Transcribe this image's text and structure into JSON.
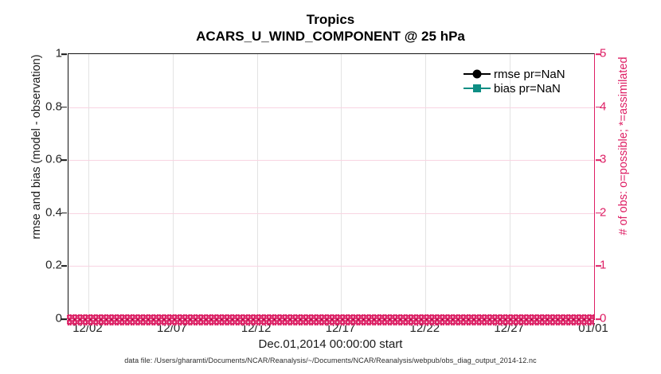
{
  "title": "Tropics",
  "subtitle": "ACARS_U_WIND_COMPONENT @ 25 hPa",
  "xlabel": "Dec.01,2014 00:00:00 start",
  "caption": "data file: /Users/gharamti/Documents/NCAR/Reanalysis/~/Documents/NCAR/Reanalysis/webpub/obs_diag_output_2014-12.nc",
  "colors": {
    "axis_black": "#141414",
    "right_axis_pink": "#DE1E64",
    "band_pink": "#DB1E63",
    "grid_gray": "#E3E3E3",
    "grid_pink": "#F8D4E2",
    "bias_teal": "#0E8E84"
  },
  "legend": {
    "items": [
      {
        "label": "rmse pr=NaN",
        "color": "#000000",
        "marker": "circle"
      },
      {
        "label": "bias pr=NaN",
        "color": "#0E8E84",
        "marker": "square"
      }
    ]
  },
  "chart_data": {
    "type": "line",
    "title": "Tropics",
    "subtitle": "ACARS_U_WIND_COMPONENT @ 25 hPa",
    "xlabel": "Dec.01,2014 00:00:00 start",
    "ylabel_left": "rmse and bias (model - observation)",
    "ylabel_right": "# of obs: o=possible; *=assimilated",
    "ylim_left": [
      0,
      1
    ],
    "ylim_right": [
      0,
      5
    ],
    "grid": "on",
    "legend_position": "top-right-inside",
    "x_tick_labels": [
      "12/02",
      "12/07",
      "12/12",
      "12/17",
      "12/22",
      "12/27",
      "01/01"
    ],
    "series": [
      {
        "name": "rmse pr=NaN",
        "color": "#000000",
        "marker": "circle",
        "values": "NaN for all bins (nothing plotted)"
      },
      {
        "name": "bias pr=NaN",
        "color": "#0E8E84",
        "marker": "square",
        "values": "NaN for all bins (nothing plotted)"
      },
      {
        "name": "# of obs possible (o)",
        "color": "#DB1E63",
        "marker": "o",
        "values": "0 at every time bin from Dec 01 2014 through Jan 01 2015"
      },
      {
        "name": "# of obs assimilated (*)",
        "color": "#DB1E63",
        "marker": "*",
        "values": "0 at every time bin from Dec 01 2014 through Jan 01 2015"
      }
    ],
    "axes": {
      "x": {
        "min": -0.18,
        "max": 31,
        "ticks": [
          {
            "v": 1,
            "t": "12/02"
          },
          {
            "v": 6,
            "t": "12/07"
          },
          {
            "v": 11,
            "t": "12/12"
          },
          {
            "v": 16,
            "t": "12/17"
          },
          {
            "v": 21,
            "t": "12/22"
          },
          {
            "v": 26,
            "t": "12/27"
          },
          {
            "v": 31,
            "t": "01/01"
          }
        ]
      },
      "left": {
        "label": "rmse and bias (model - observation)",
        "min": 0,
        "max": 1,
        "ticks": [
          {
            "v": 0,
            "t": "0"
          },
          {
            "v": 0.2,
            "t": "0.2"
          },
          {
            "v": 0.4,
            "t": "0.4"
          },
          {
            "v": 0.6,
            "t": "0.6"
          },
          {
            "v": 0.8,
            "t": "0.8"
          },
          {
            "v": 1,
            "t": "1"
          }
        ]
      },
      "right": {
        "label": "# of obs: o=possible; *=assimilated",
        "min": 0,
        "max": 5,
        "ticks": [
          {
            "v": 0,
            "t": "0"
          },
          {
            "v": 1,
            "t": "1"
          },
          {
            "v": 2,
            "t": "2"
          },
          {
            "v": 3,
            "t": "3"
          },
          {
            "v": 4,
            "t": "4"
          },
          {
            "v": 5,
            "t": "5"
          }
        ]
      }
    }
  }
}
